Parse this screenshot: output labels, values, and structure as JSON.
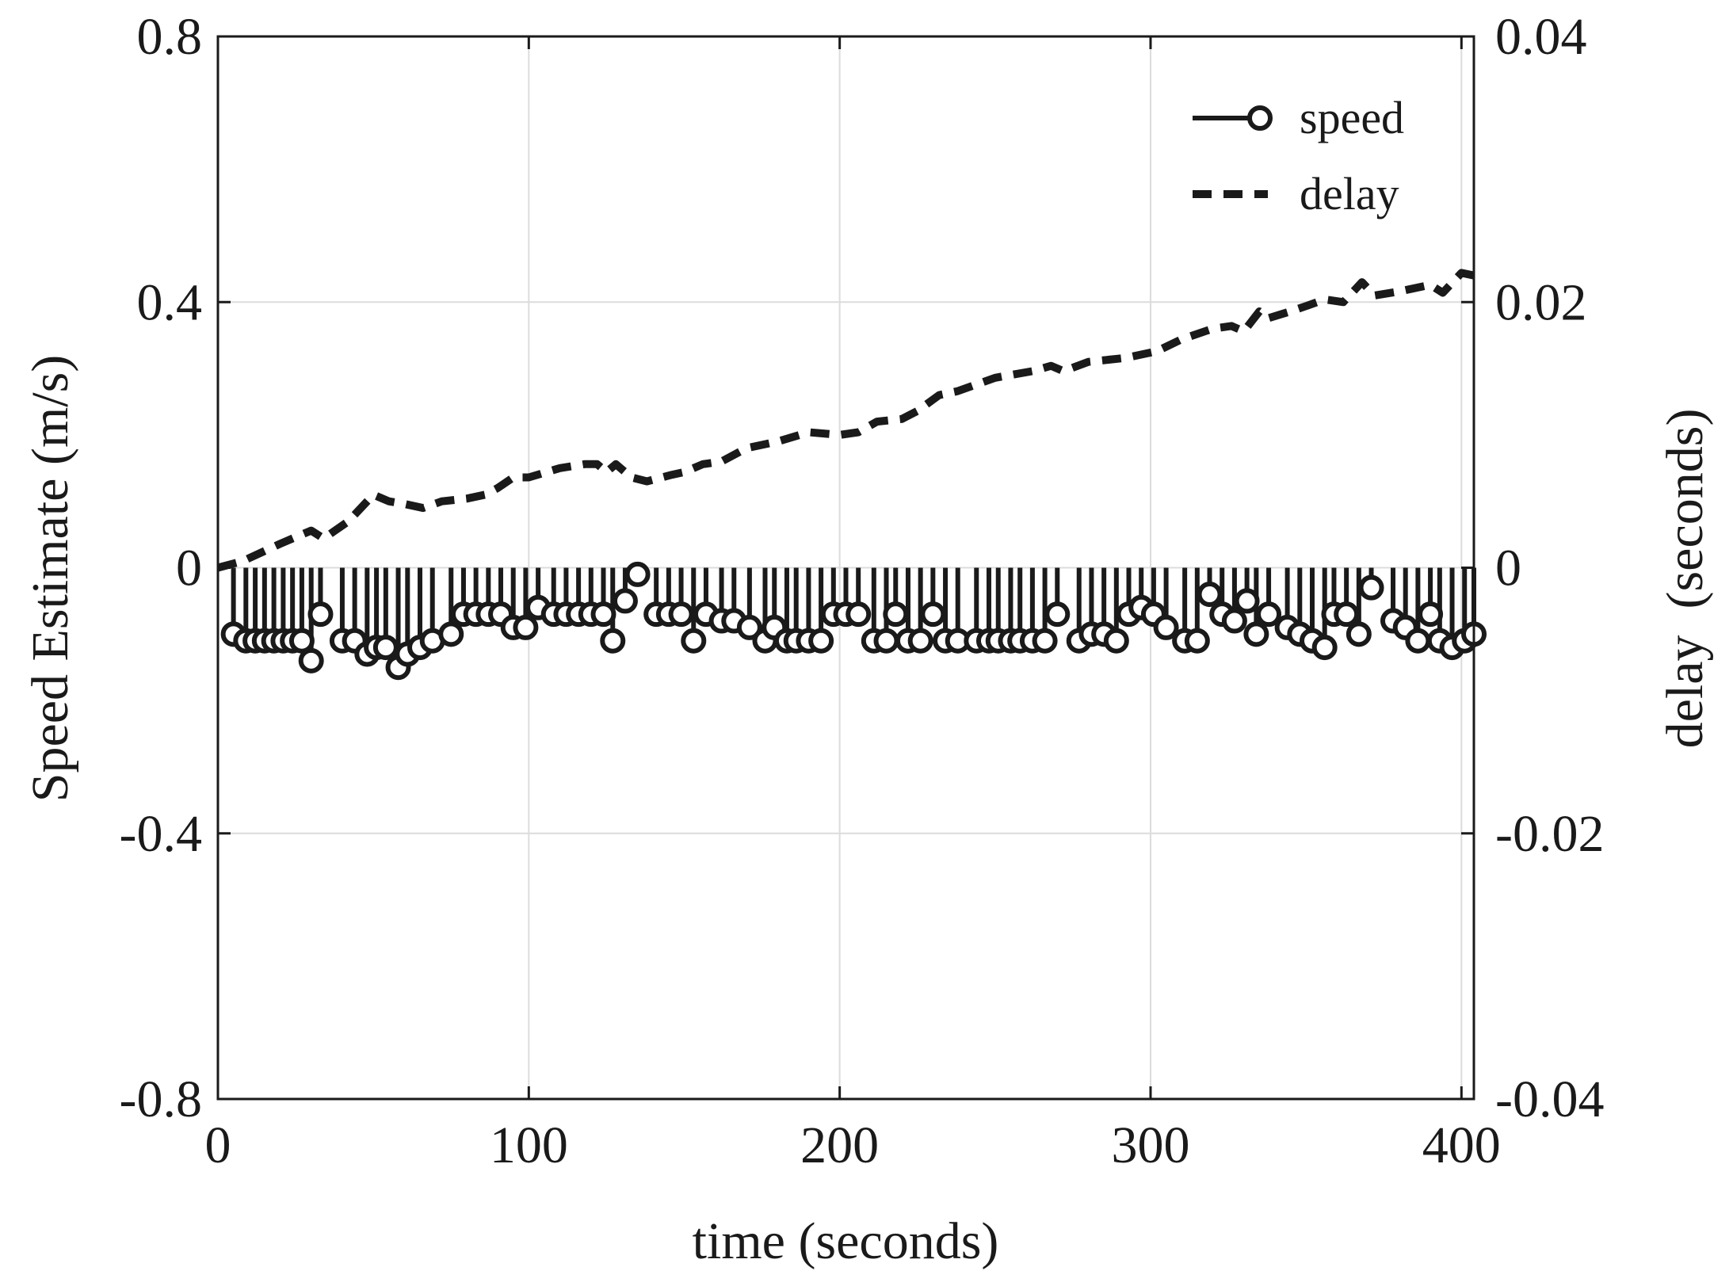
{
  "chart_data": {
    "type": "line",
    "title": "",
    "xlabel": "time (seconds)",
    "ylabel_left": "Speed Estimate (m/s)",
    "ylabel_right": "delay  (seconds)",
    "xlim": [
      0,
      404
    ],
    "ylim_left": [
      -0.8,
      0.8
    ],
    "ylim_right": [
      -0.04,
      0.04
    ],
    "xticks": [
      0,
      100,
      200,
      300,
      400
    ],
    "xtick_labels": [
      "0",
      "100",
      "200",
      "300",
      "400"
    ],
    "yticks_left": [
      0.8,
      0.4,
      0,
      -0.4,
      -0.8
    ],
    "ytick_labels_left": [
      "0.8",
      "0.4",
      "0",
      "-0.4",
      "-0.8"
    ],
    "yticks_right": [
      0.04,
      0.02,
      0,
      -0.02,
      -0.04
    ],
    "ytick_labels_right": [
      "0.04",
      "0.02",
      "0",
      "-0.02",
      "-0.04"
    ],
    "grid": true,
    "legend_position": "top-right",
    "series": [
      {
        "name": "speed",
        "style": "stem",
        "axis": "left",
        "x": [
          5,
          9,
          12,
          15,
          18,
          21,
          24,
          27,
          30,
          33,
          40,
          44,
          48,
          51,
          54,
          58,
          61,
          65,
          69,
          75,
          79,
          83,
          87,
          91,
          95,
          99,
          103,
          108,
          112,
          116,
          120,
          124,
          127,
          131,
          135,
          141,
          145,
          149,
          153,
          157,
          162,
          166,
          171,
          176,
          179,
          183,
          186,
          190,
          194,
          198,
          202,
          206,
          211,
          215,
          218,
          222,
          226,
          230,
          234,
          238,
          244,
          248,
          251,
          255,
          258,
          262,
          266,
          270,
          277,
          281,
          285,
          289,
          293,
          297,
          301,
          305,
          311,
          315,
          319,
          323,
          327,
          331,
          334,
          338,
          344,
          348,
          352,
          356,
          359,
          363,
          367,
          371,
          378,
          382,
          386,
          390,
          393,
          397,
          401,
          404
        ],
        "y": [
          -0.1,
          -0.11,
          -0.11,
          -0.11,
          -0.11,
          -0.11,
          -0.11,
          -0.11,
          -0.14,
          -0.07,
          -0.11,
          -0.11,
          -0.13,
          -0.12,
          -0.12,
          -0.15,
          -0.13,
          -0.12,
          -0.11,
          -0.1,
          -0.07,
          -0.07,
          -0.07,
          -0.07,
          -0.09,
          -0.09,
          -0.06,
          -0.07,
          -0.07,
          -0.07,
          -0.07,
          -0.07,
          -0.11,
          -0.05,
          -0.01,
          -0.07,
          -0.07,
          -0.07,
          -0.11,
          -0.07,
          -0.08,
          -0.08,
          -0.09,
          -0.11,
          -0.09,
          -0.11,
          -0.11,
          -0.11,
          -0.11,
          -0.07,
          -0.07,
          -0.07,
          -0.11,
          -0.11,
          -0.07,
          -0.11,
          -0.11,
          -0.07,
          -0.11,
          -0.11,
          -0.11,
          -0.11,
          -0.11,
          -0.11,
          -0.11,
          -0.11,
          -0.11,
          -0.07,
          -0.11,
          -0.1,
          -0.1,
          -0.11,
          -0.07,
          -0.06,
          -0.07,
          -0.09,
          -0.11,
          -0.11,
          -0.04,
          -0.07,
          -0.08,
          -0.05,
          -0.1,
          -0.07,
          -0.09,
          -0.1,
          -0.11,
          -0.12,
          -0.07,
          -0.07,
          -0.1,
          -0.03,
          -0.08,
          -0.09,
          -0.11,
          -0.07,
          -0.11,
          -0.12,
          -0.11,
          -0.1
        ]
      },
      {
        "name": "delay",
        "style": "dashed",
        "axis": "right",
        "x": [
          0,
          8,
          20,
          30,
          34,
          42,
          50,
          55,
          60,
          66,
          72,
          80,
          86,
          90,
          95,
          100,
          110,
          118,
          122,
          125,
          128,
          133,
          138,
          146,
          150,
          156,
          162,
          170,
          180,
          190,
          200,
          206,
          212,
          220,
          225,
          232,
          238,
          250,
          262,
          268,
          272,
          280,
          292,
          302,
          310,
          320,
          326,
          330,
          335,
          338,
          345,
          350,
          356,
          362,
          366,
          368,
          372,
          380,
          390,
          394,
          400,
          404
        ],
        "y": [
          0,
          0.0005,
          0.0018,
          0.0028,
          0.0022,
          0.0035,
          0.0055,
          0.005,
          0.0048,
          0.0045,
          0.005,
          0.0052,
          0.0055,
          0.006,
          0.0068,
          0.0068,
          0.0075,
          0.0078,
          0.0078,
          0.0072,
          0.0078,
          0.0068,
          0.0065,
          0.007,
          0.0072,
          0.0078,
          0.008,
          0.009,
          0.0095,
          0.0102,
          0.01,
          0.0102,
          0.011,
          0.0112,
          0.0118,
          0.013,
          0.0133,
          0.0143,
          0.0148,
          0.0152,
          0.0148,
          0.0155,
          0.0158,
          0.0163,
          0.0172,
          0.018,
          0.0182,
          0.0178,
          0.0193,
          0.0188,
          0.0193,
          0.0197,
          0.0202,
          0.02,
          0.021,
          0.0215,
          0.0205,
          0.0208,
          0.0213,
          0.0207,
          0.0222,
          0.022
        ]
      }
    ]
  }
}
